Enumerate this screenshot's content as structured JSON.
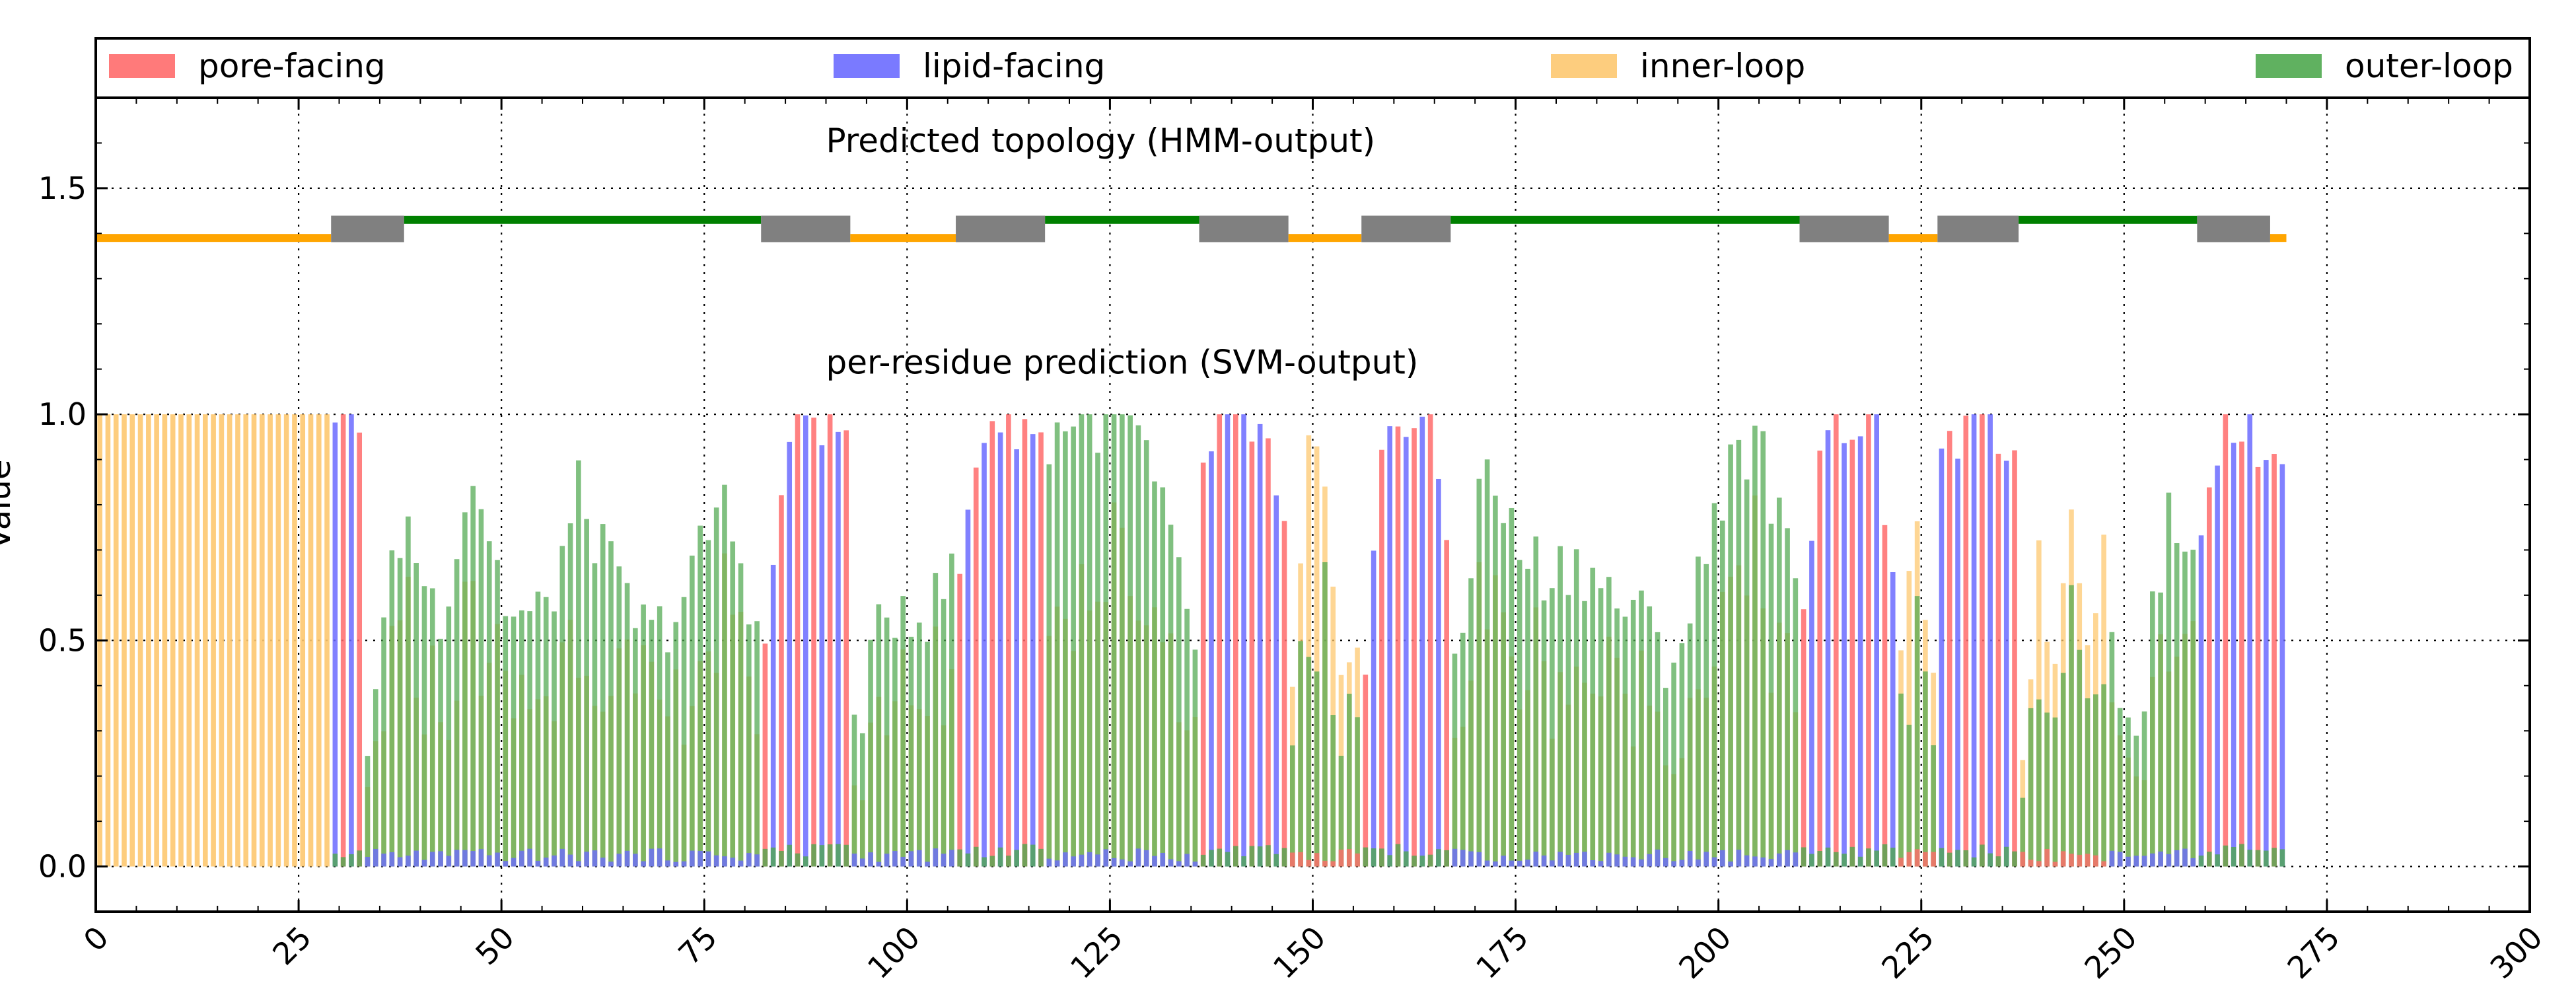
{
  "chart_data": {
    "type": "bar",
    "xlabel": "",
    "ylabel": "Value",
    "xlim": [
      0,
      300
    ],
    "ylim": [
      -0.1,
      1.7
    ],
    "x_ticks": [
      0,
      25,
      50,
      75,
      100,
      125,
      150,
      175,
      200,
      225,
      250,
      275,
      300
    ],
    "x_tick_labels": [
      "0",
      "25",
      "50",
      "75",
      "100",
      "125",
      "150",
      "175",
      "200",
      "225",
      "250",
      "275",
      "300"
    ],
    "y_ticks": [
      0.0,
      0.5,
      1.0,
      1.5
    ],
    "y_tick_labels": [
      "0.0",
      "0.5",
      "1.0",
      "1.5"
    ],
    "grid": true,
    "legend_position": "top",
    "legend": [
      {
        "label": "pore-facing",
        "color": "#ff6b6b"
      },
      {
        "label": "lipid-facing",
        "color": "#6b6bff"
      },
      {
        "label": "inner-loop",
        "color": "#fdc870"
      },
      {
        "label": "outer-loop",
        "color": "#4fa84f"
      }
    ],
    "annotations": [
      {
        "text": "Predicted topology (HMM-output)",
        "x": 90,
        "y": 1.58
      },
      {
        "text": "per-residue prediction (SVM-output)",
        "x": 90,
        "y": 1.09
      }
    ],
    "n_residues": 270,
    "series_colors": {
      "pore": "#ff6b6b",
      "lipid": "#6b6bff",
      "inner": "#fdc870",
      "outer": "#4fa84f"
    },
    "topology": {
      "inner_y": 1.39,
      "outer_y": 1.43,
      "tm_y": 1.41,
      "segments": [
        {
          "type": "inner",
          "start": 0,
          "end": 29
        },
        {
          "type": "tm",
          "start": 29,
          "end": 38
        },
        {
          "type": "outer",
          "start": 38,
          "end": 82
        },
        {
          "type": "tm",
          "start": 82,
          "end": 93
        },
        {
          "type": "inner",
          "start": 93,
          "end": 106
        },
        {
          "type": "tm",
          "start": 106,
          "end": 117
        },
        {
          "type": "outer",
          "start": 117,
          "end": 136
        },
        {
          "type": "tm",
          "start": 136,
          "end": 147
        },
        {
          "type": "inner",
          "start": 147,
          "end": 156
        },
        {
          "type": "tm",
          "start": 156,
          "end": 167
        },
        {
          "type": "outer",
          "start": 167,
          "end": 210
        },
        {
          "type": "tm",
          "start": 210,
          "end": 221
        },
        {
          "type": "inner",
          "start": 221,
          "end": 227
        },
        {
          "type": "tm",
          "start": 227,
          "end": 237
        },
        {
          "type": "outer",
          "start": 237,
          "end": 259
        },
        {
          "type": "tm",
          "start": 259,
          "end": 268
        },
        {
          "type": "inner",
          "start": 268,
          "end": 270
        }
      ],
      "colors": {
        "inner": "#ffa500",
        "outer": "#008000",
        "tm": "#808080"
      }
    },
    "segments": [
      {
        "class": "inner",
        "start": 0,
        "end": 29,
        "profile": [
          1.0,
          1.0
        ]
      },
      {
        "class": "tm",
        "start": 29,
        "end": 33,
        "profile": [
          1.0,
          0.96
        ]
      },
      {
        "class": "outer",
        "start": 33,
        "end": 82,
        "profile": [
          0.3,
          0.78,
          0.55,
          0.88,
          0.55,
          0.55,
          0.83,
          0.62,
          0.5,
          0.6,
          0.82,
          0.55
        ]
      },
      {
        "class": "tm",
        "start": 82,
        "end": 93,
        "profile": [
          0.45,
          0.85,
          1.0,
          1.0,
          1.0,
          0.95
        ]
      },
      {
        "class": "outer",
        "start": 93,
        "end": 106,
        "profile": [
          0.3,
          0.5,
          0.6,
          0.55,
          0.65
        ]
      },
      {
        "class": "tm",
        "start": 106,
        "end": 117,
        "profile": [
          0.65,
          0.97,
          1.0,
          1.0,
          0.93
        ]
      },
      {
        "class": "outer",
        "start": 117,
        "end": 136,
        "profile": [
          0.95,
          1.0,
          0.99,
          1.0,
          0.9,
          0.7,
          0.5
        ]
      },
      {
        "class": "tm",
        "start": 136,
        "end": 147,
        "profile": [
          0.85,
          1.0,
          0.98,
          0.95,
          0.7
        ]
      },
      {
        "class": "inner",
        "start": 147,
        "end": 156,
        "profile": [
          0.35,
          0.9,
          0.8,
          0.5,
          0.45
        ]
      },
      {
        "class": "tm",
        "start": 156,
        "end": 167,
        "profile": [
          0.45,
          0.98,
          1.0,
          0.98,
          0.75
        ]
      },
      {
        "class": "outer",
        "start": 167,
        "end": 210,
        "profile": [
          0.45,
          0.9,
          0.7,
          0.65,
          0.68,
          0.6,
          0.55,
          0.45,
          0.65,
          0.95,
          0.9,
          0.6
        ]
      },
      {
        "class": "tm",
        "start": 210,
        "end": 222,
        "profile": [
          0.62,
          0.99,
          1.0,
          1.0,
          0.95,
          0.7
        ]
      },
      {
        "class": "inner",
        "start": 222,
        "end": 227,
        "profile": [
          0.45,
          0.7,
          0.5
        ]
      },
      {
        "class": "tm",
        "start": 227,
        "end": 237,
        "profile": [
          0.85,
          1.0,
          1.0,
          0.9
        ]
      },
      {
        "class": "inner",
        "start": 237,
        "end": 248,
        "profile": [
          0.3,
          0.65,
          0.45,
          0.82,
          0.55,
          0.7
        ]
      },
      {
        "class": "outer",
        "start": 248,
        "end": 259,
        "profile": [
          0.55,
          0.22,
          0.55,
          0.8,
          0.65
        ]
      },
      {
        "class": "tm",
        "start": 259,
        "end": 270,
        "profile": [
          0.8,
          1.0,
          1.0,
          0.95,
          0.92
        ]
      }
    ]
  }
}
